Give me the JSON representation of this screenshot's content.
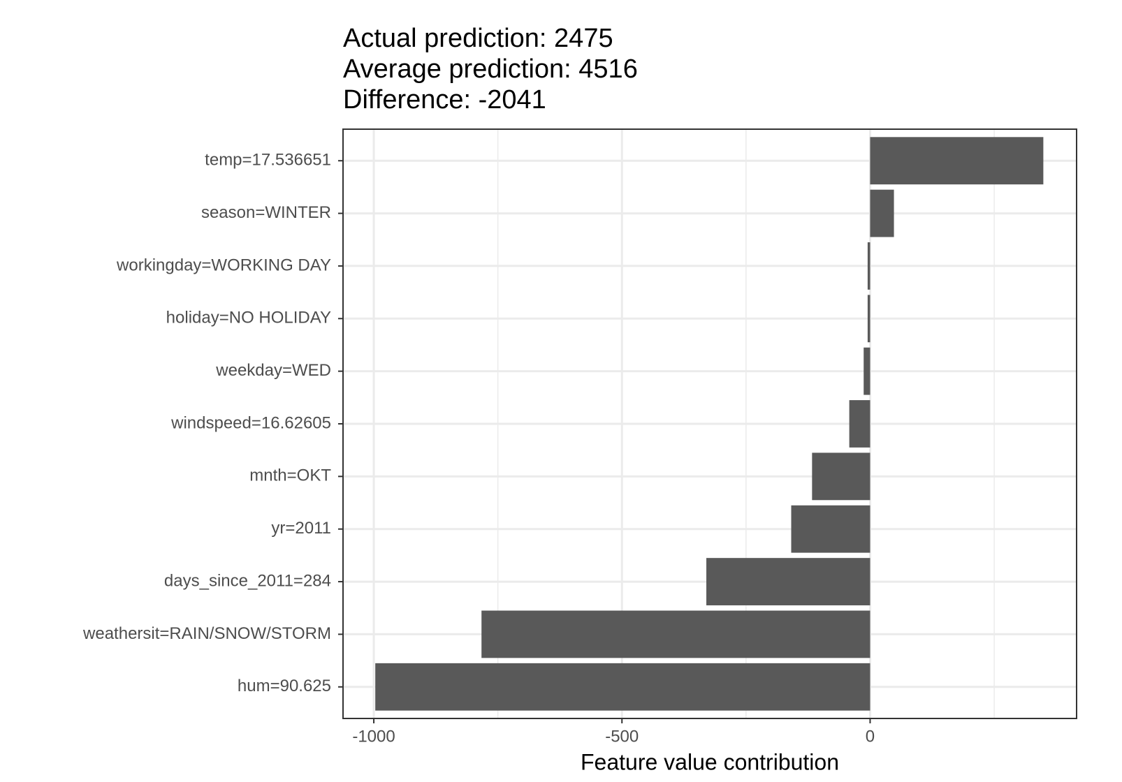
{
  "chart_data": {
    "type": "bar",
    "orientation": "horizontal",
    "title_lines": [
      "Actual prediction: 2475",
      "Average prediction: 4516",
      "Difference: -2041"
    ],
    "xlabel": "Feature value contribution",
    "categories": [
      "temp=17.536651",
      "season=WINTER",
      "workingday=WORKING DAY",
      "holiday=NO HOLIDAY",
      "weekday=WED",
      "windspeed=16.62605",
      "mnth=OKT",
      "yr=2011",
      "days_since_2011=284",
      "weathersit=RAIN/SNOW/STORM",
      "hum=90.625"
    ],
    "values": [
      349,
      48,
      -5,
      -5,
      -13,
      -42,
      -117,
      -159,
      -330,
      -783,
      -997
    ],
    "color": "#595959",
    "xlim": [
      -1062,
      416
    ],
    "xticks": [
      -1000,
      -500,
      0
    ],
    "xminorticks": [
      -750,
      -250,
      250
    ],
    "grid": true
  }
}
